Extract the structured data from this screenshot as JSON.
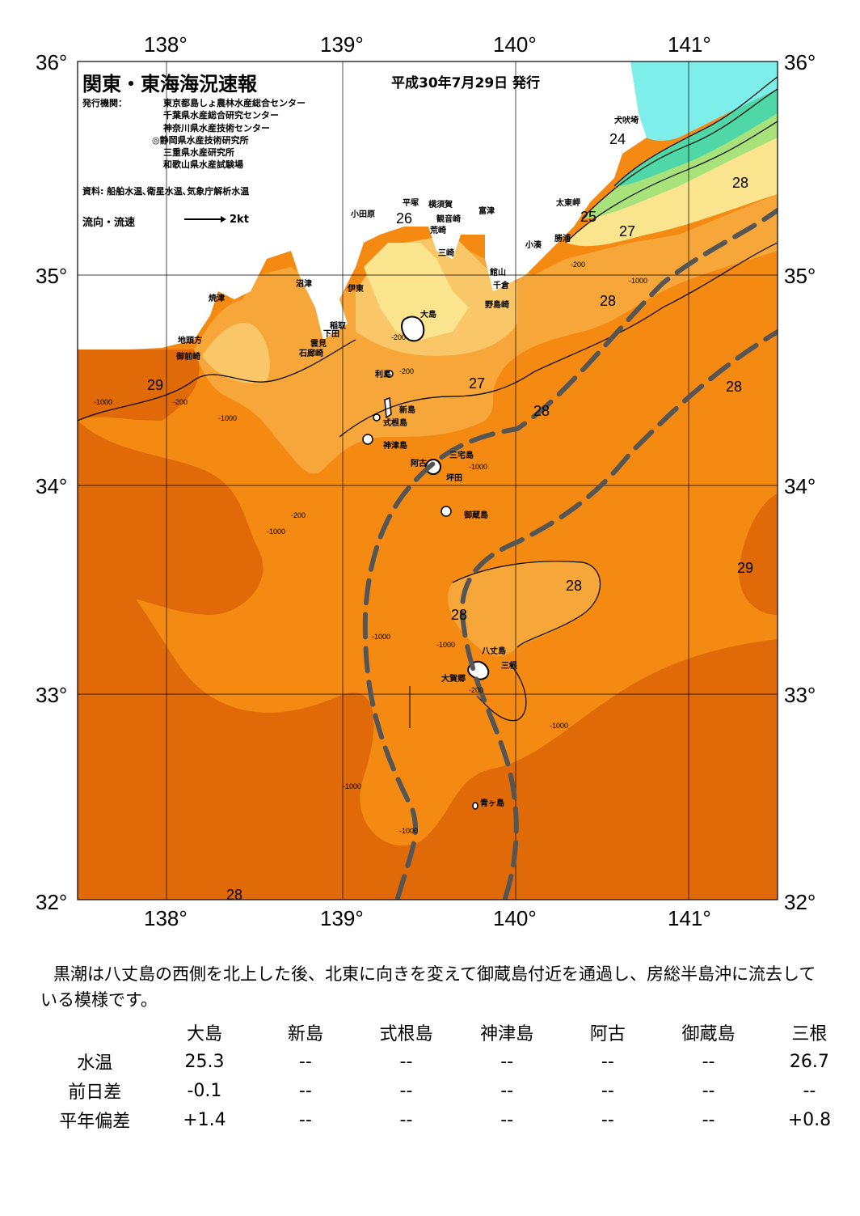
{
  "header": {
    "title": "関東・東海海況速報",
    "issue_date": "平成30年7月29日 発行",
    "agency_label": "発行機関：",
    "agencies": [
      "東京都島しょ農林水産総合センター",
      "千葉県水産総合研究センター",
      "神奈川県水産技術センター",
      "◎静岡県水産技術研究所",
      "三重県水産研究所",
      "和歌山県水産試験場"
    ],
    "source": "資料: 船舶水温､衛星水温､気象庁解析水温",
    "flow_label": "流向・流速",
    "flow_scale": "2kt"
  },
  "axes": {
    "lon_labels": [
      "138°",
      "139°",
      "140°",
      "141°"
    ],
    "lat_labels": [
      "36°",
      "35°",
      "34°",
      "33°",
      "32°"
    ]
  },
  "map": {
    "colors": {
      "t29": "#e06a08",
      "t28": "#f58a12",
      "t27": "#f7a73a",
      "t26": "#f9c768",
      "t25": "#fbe48e",
      "t24": "#a7e27a",
      "t23": "#4fd7a7",
      "t22": "#7eeeea",
      "land": "#ffffff",
      "kuroshio": "#555555"
    },
    "places": [
      "犬吠埼",
      "太東岬",
      "勝浦",
      "小湊",
      "富津",
      "館山",
      "千倉",
      "野島崎",
      "横須賀",
      "観音崎",
      "荒崎",
      "三崎",
      "平塚",
      "小田原",
      "沼津",
      "伊東",
      "焼津",
      "稲取",
      "下田",
      "雲見",
      "石廊崎",
      "地頭方",
      "御前崎",
      "大島",
      "利島",
      "新島",
      "式根島",
      "神津島",
      "三宅島",
      "阿古",
      "坪田",
      "御蔵島",
      "八丈島",
      "大賀郷",
      "三根",
      "青ヶ島"
    ],
    "isotherm_labels": [
      "24",
      "25",
      "26",
      "27",
      "27",
      "28",
      "28",
      "28",
      "28",
      "28",
      "28",
      "29",
      "29",
      "28"
    ],
    "depth_labels": [
      "-200",
      "-1000"
    ]
  },
  "description": "黒潮は八丈島の西側を北上した後、北東に向きを変えて御蔵島付近を通過し、房総半島沖に流去している模様です。",
  "table": {
    "columns": [
      "大島",
      "新島",
      "式根島",
      "神津島",
      "阿古",
      "御蔵島",
      "三根"
    ],
    "rows": [
      {
        "label": "水温",
        "values": [
          "25.3",
          "--",
          "--",
          "--",
          "--",
          "--",
          "26.7"
        ]
      },
      {
        "label": "前日差",
        "values": [
          "-0.1",
          "--",
          "--",
          "--",
          "--",
          "--",
          "--"
        ]
      },
      {
        "label": "平年偏差",
        "values": [
          "+1.4",
          "--",
          "--",
          "--",
          "--",
          "--",
          "+0.8"
        ]
      }
    ]
  }
}
